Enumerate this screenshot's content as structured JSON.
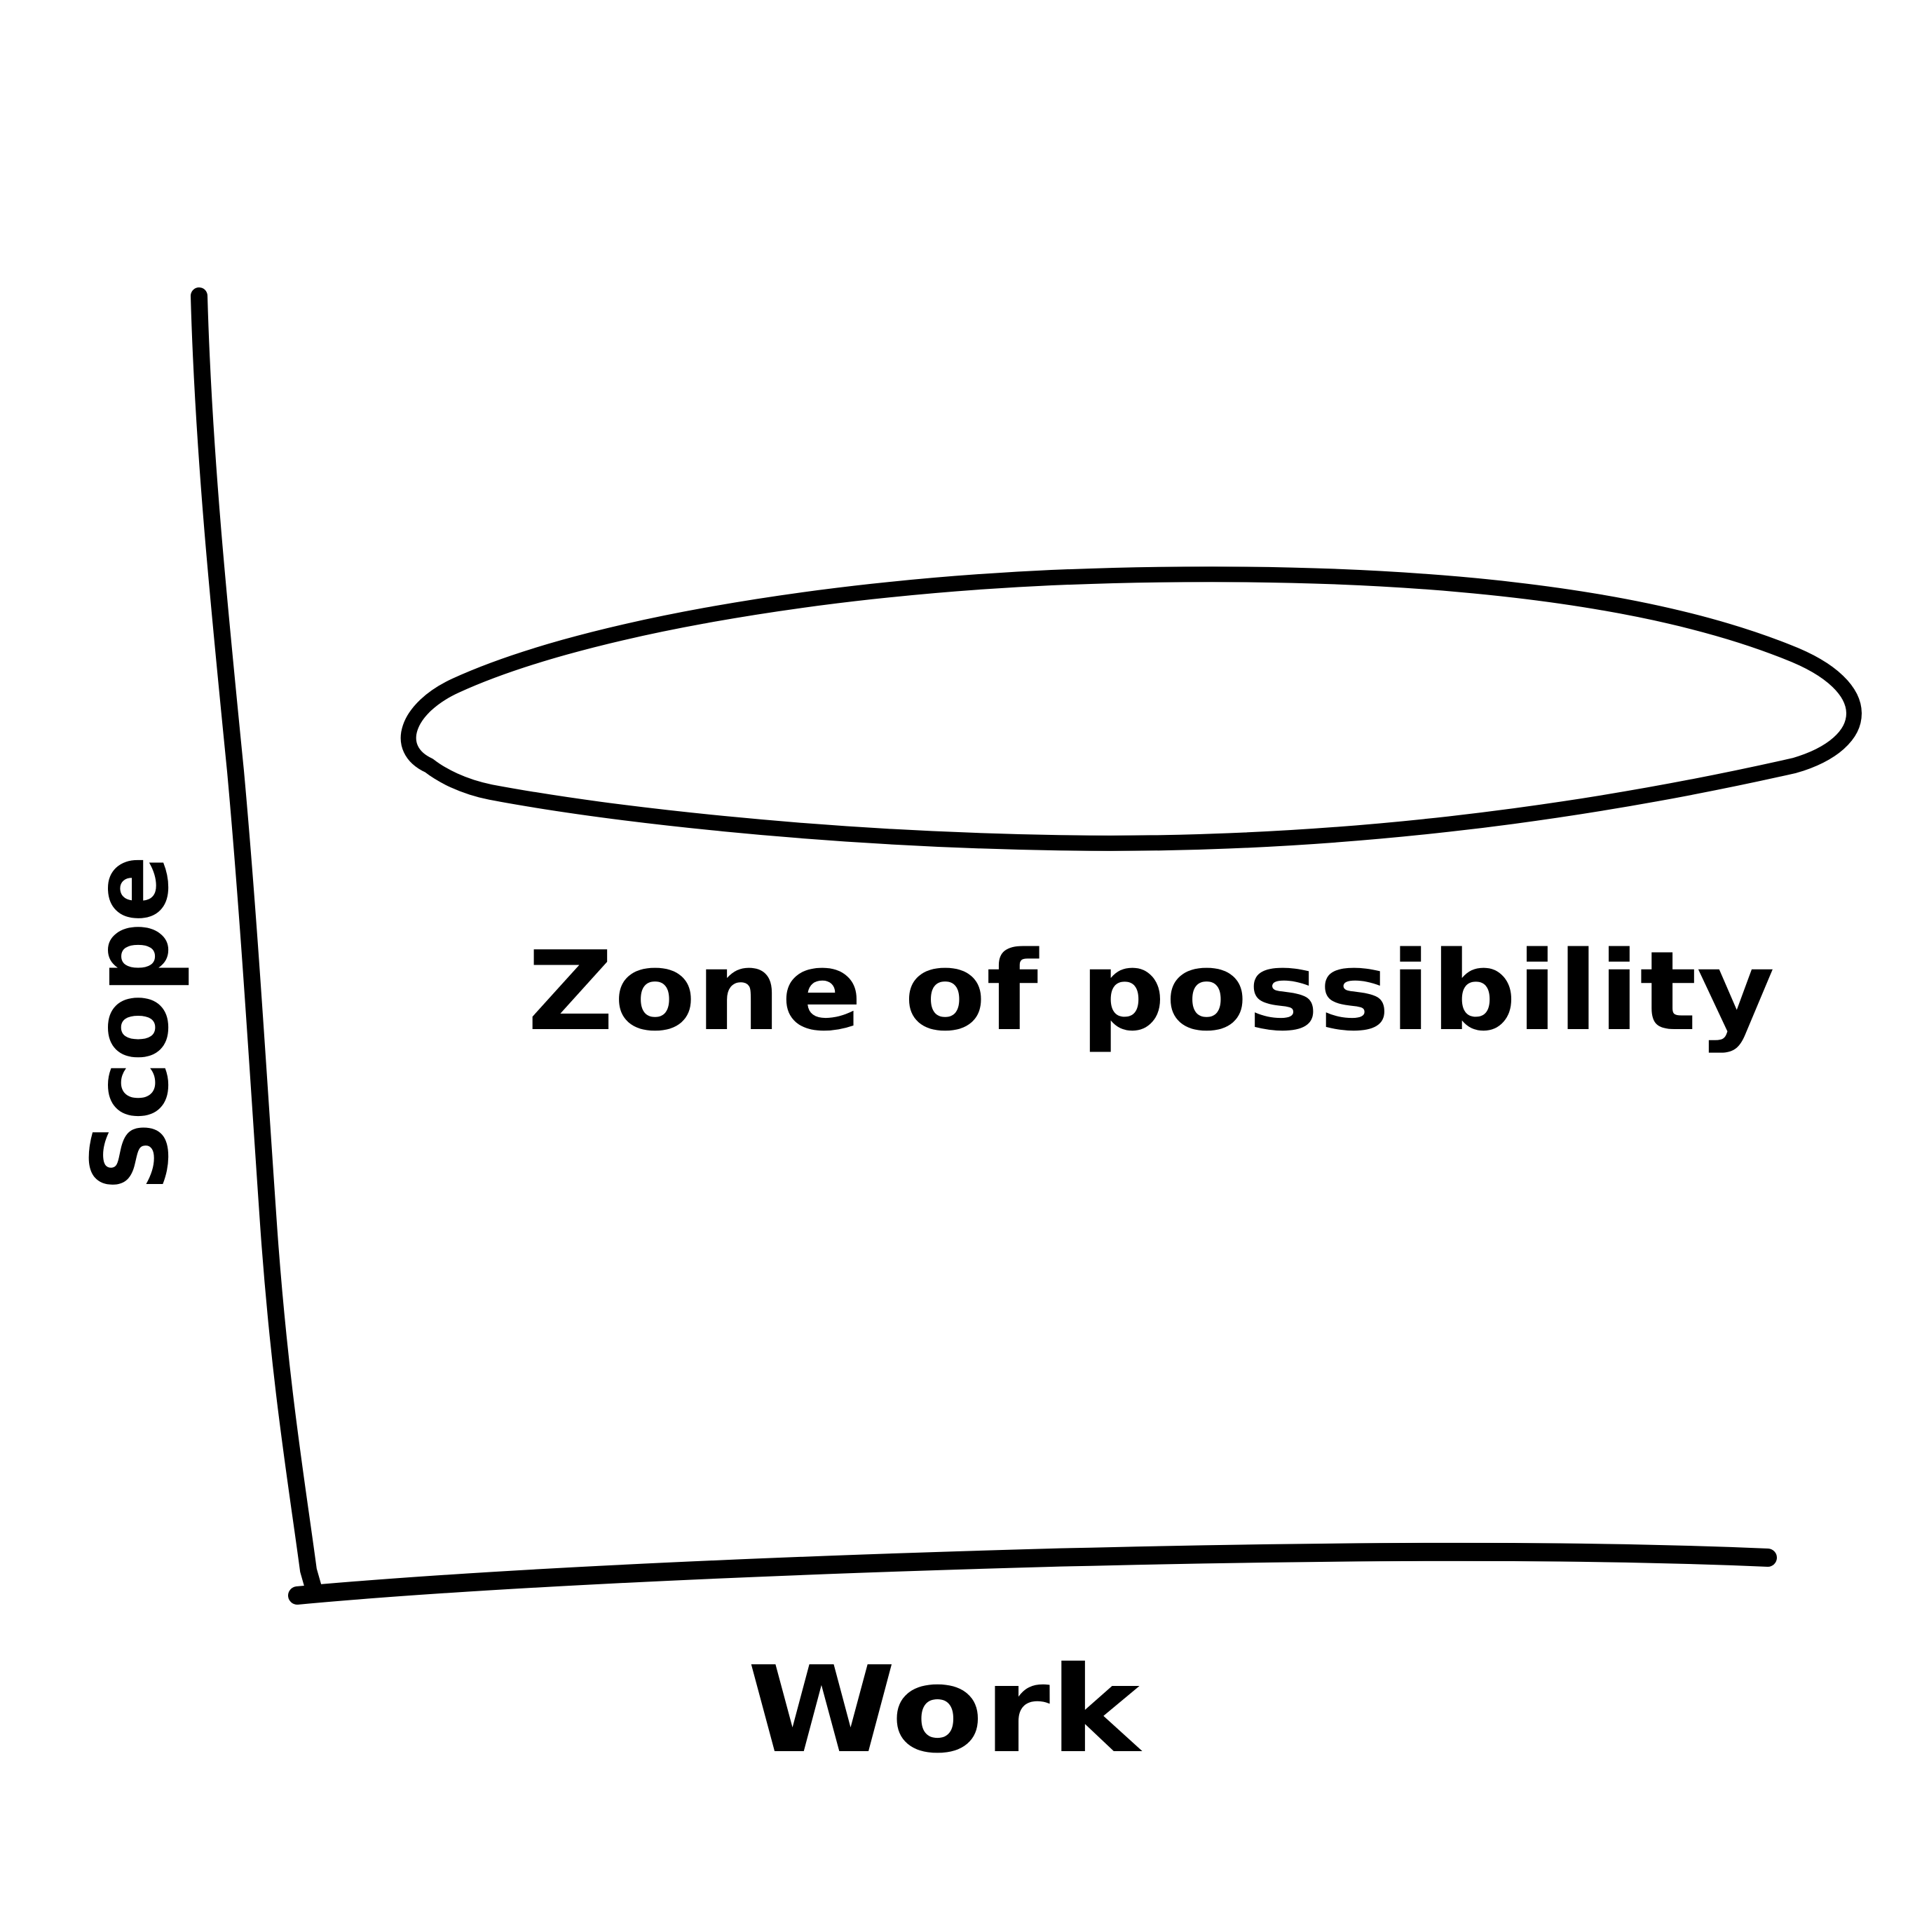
{
  "diagram": {
    "x_axis_label": "Work",
    "y_axis_label": "Scope",
    "zone_label": "Zone of possibility",
    "ink_color": "#000000",
    "background_color": "#ffffff"
  }
}
